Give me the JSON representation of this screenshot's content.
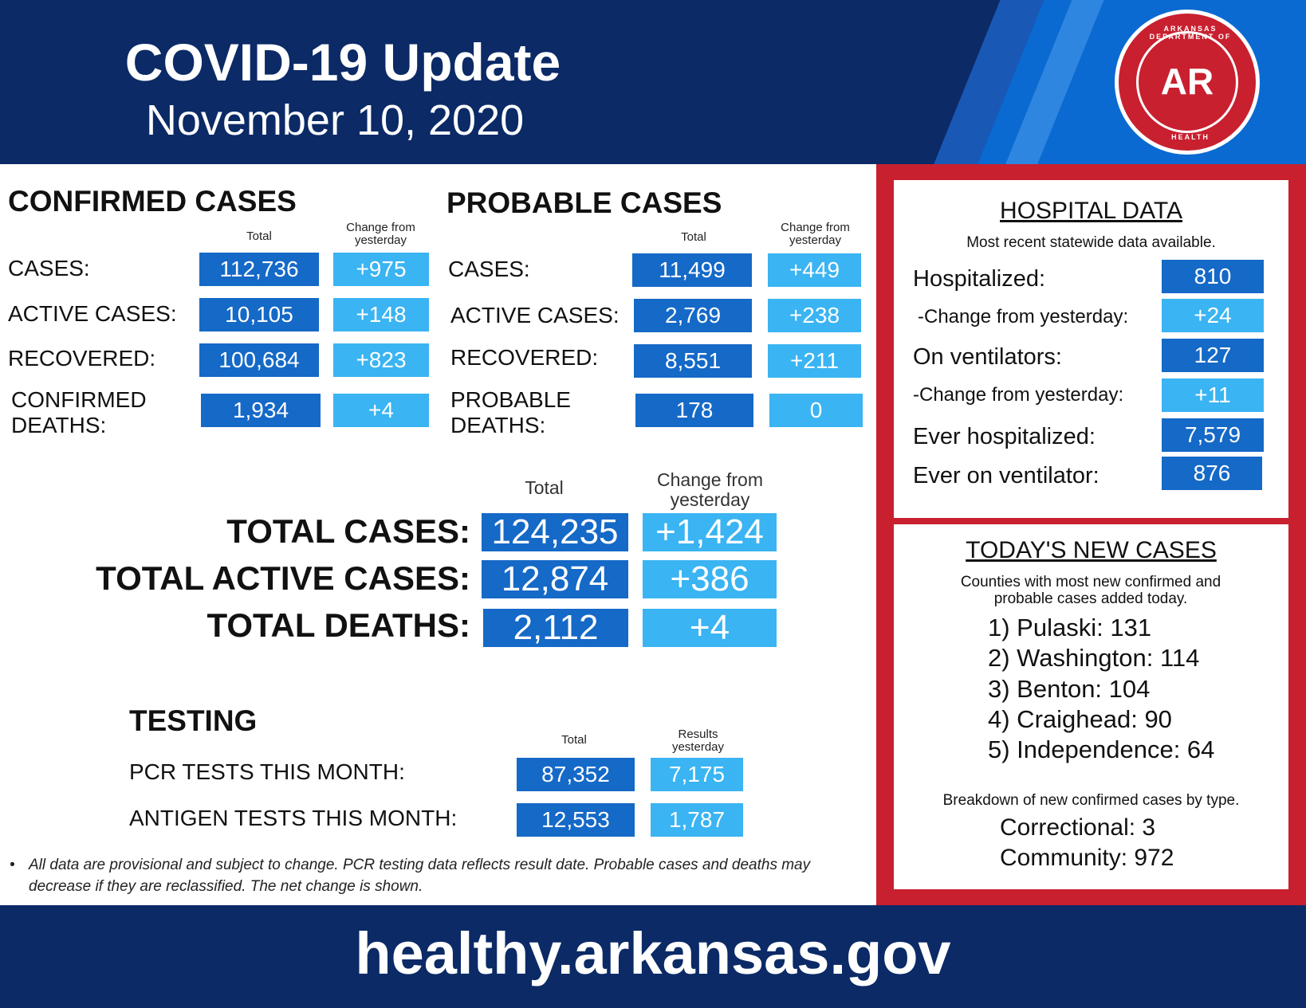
{
  "header": {
    "title": "COVID-19 Update",
    "date": "November 10, 2020",
    "seal": {
      "top_text": "ARKANSAS DEPARTMENT OF",
      "letters": "AR",
      "bottom_text": "HEALTH"
    }
  },
  "confirmed": {
    "heading": "CONFIRMED CASES",
    "col_total": "Total",
    "col_change": "Change from yesterday",
    "rows": [
      {
        "label": "CASES:",
        "total": "112,736",
        "change": "+975"
      },
      {
        "label": "ACTIVE CASES:",
        "total": "10,105",
        "change": "+148"
      },
      {
        "label": "RECOVERED:",
        "total": "100,684",
        "change": "+823"
      },
      {
        "label": "CONFIRMED DEATHS:",
        "total": "1,934",
        "change": "+4"
      }
    ]
  },
  "probable": {
    "heading": "PROBABLE CASES",
    "col_total": "Total",
    "col_change": "Change from yesterday",
    "rows": [
      {
        "label": "CASES:",
        "total": "11,499",
        "change": "+449"
      },
      {
        "label": "ACTIVE CASES:",
        "total": "2,769",
        "change": "+238"
      },
      {
        "label": "RECOVERED:",
        "total": "8,551",
        "change": "+211"
      },
      {
        "label": "PROBABLE DEATHS:",
        "total": "178",
        "change": "0"
      }
    ]
  },
  "totals": {
    "col_total": "Total",
    "col_change": "Change from yesterday",
    "rows": [
      {
        "label": "TOTAL CASES:",
        "total": "124,235",
        "change": "+1,424"
      },
      {
        "label": "TOTAL ACTIVE CASES:",
        "total": "12,874",
        "change": "+386"
      },
      {
        "label": "TOTAL DEATHS:",
        "total": "2,112",
        "change": "+4"
      }
    ]
  },
  "testing": {
    "heading": "TESTING",
    "col_total": "Total",
    "col_results": "Results yesterday",
    "rows": [
      {
        "label": "PCR TESTS THIS MONTH:",
        "total": "87,352",
        "results": "7,175"
      },
      {
        "label": "ANTIGEN TESTS THIS MONTH:",
        "total": "12,553",
        "results": "1,787"
      }
    ]
  },
  "note": {
    "bullet": "•",
    "text": "All data are provisional and subject to change. PCR testing data reflects result date. Probable cases and deaths may decrease if they are reclassified. The net change is shown."
  },
  "hospital": {
    "title": "HOSPITAL DATA",
    "subtitle": "Most recent statewide data available.",
    "rows": [
      {
        "label": "Hospitalized:",
        "value": "810"
      },
      {
        "label": "-Change from yesterday:",
        "value": "+24"
      },
      {
        "label": "On ventilators:",
        "value": "127"
      },
      {
        "label": "-Change from yesterday:",
        "value": "+11"
      },
      {
        "label": "Ever hospitalized:",
        "value": "7,579"
      },
      {
        "label": "Ever on ventilator:",
        "value": "876"
      }
    ]
  },
  "new_cases": {
    "title": "TODAY'S NEW CASES",
    "subtitle": "Counties with most new confirmed and probable cases added today.",
    "counties": [
      "1) Pulaski: 131",
      "2) Washington: 114",
      "3) Benton: 104",
      "4) Craighead: 90",
      "5) Independence: 64"
    ],
    "breakdown_title": "Breakdown of new confirmed cases by type.",
    "breakdown": [
      "Correctional: 3",
      "Community: 972"
    ]
  },
  "footer": {
    "url": "healthy.arkansas.gov"
  },
  "colors": {
    "navy": "#0b2a66",
    "dark_blue_box": "#1569c7",
    "light_blue_box": "#3ab4f2",
    "red": "#c8202f"
  }
}
